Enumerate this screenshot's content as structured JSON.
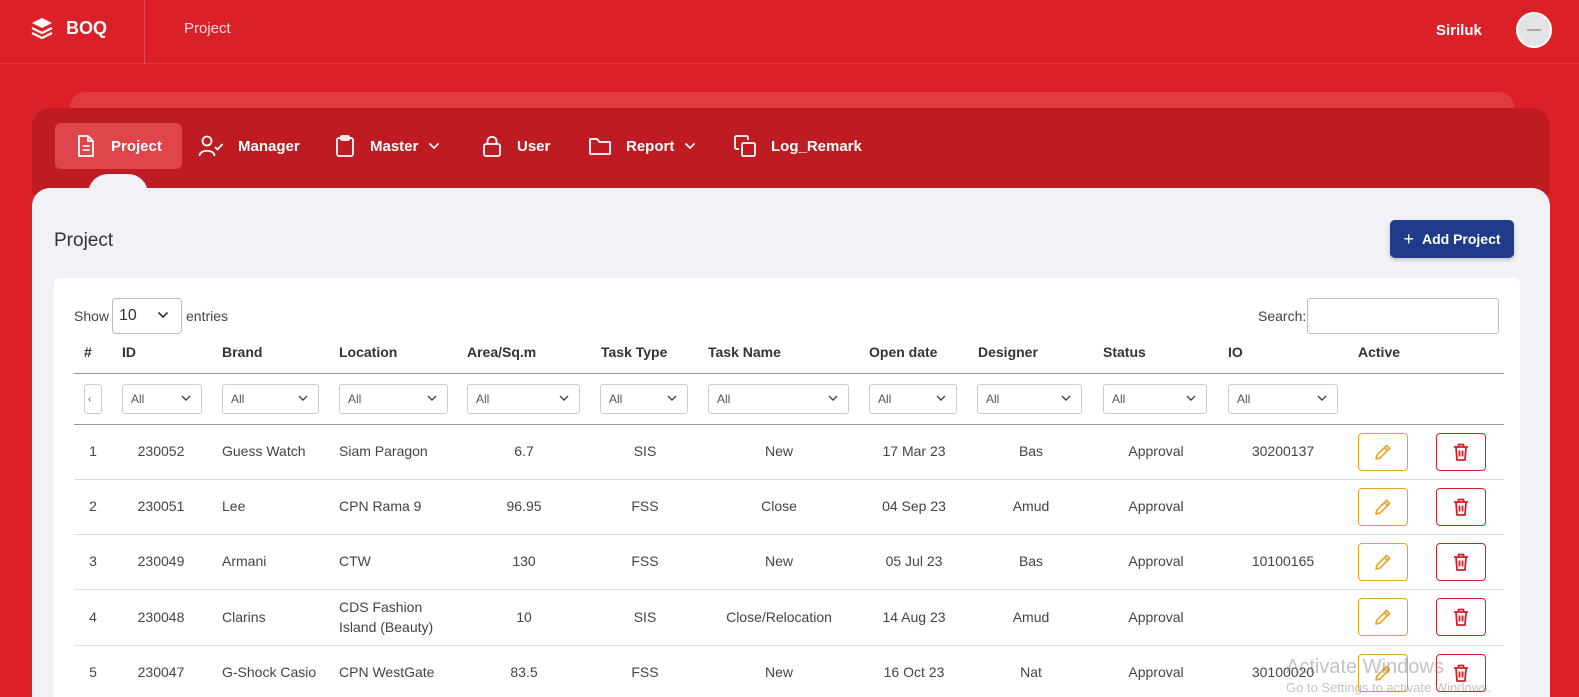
{
  "header": {
    "brand": "BOQ",
    "breadcrumb": "Project",
    "username": "Siriluk"
  },
  "nav": {
    "items": [
      {
        "label": "Project",
        "icon": "document-icon",
        "active": true
      },
      {
        "label": "Manager",
        "icon": "user-check-icon"
      },
      {
        "label": "Master",
        "icon": "clipboard-icon",
        "dropdown": true
      },
      {
        "label": "User",
        "icon": "lock-icon"
      },
      {
        "label": "Report",
        "icon": "folder-icon",
        "dropdown": true
      },
      {
        "label": "Log_Remark",
        "icon": "copy-icon"
      }
    ]
  },
  "page": {
    "title": "Project",
    "add_button": "Add Project"
  },
  "table_controls": {
    "show_label": "Show",
    "page_size": "10",
    "entries_label": "entries",
    "search_label": "Search:",
    "search_value": ""
  },
  "table": {
    "columns": [
      "#",
      "ID",
      "Brand",
      "Location",
      "Area/Sq.m",
      "Task Type",
      "Task Name",
      "Open date",
      "Designer",
      "Status",
      "IO",
      "Active"
    ],
    "filter_default": "All",
    "rows": [
      {
        "no": "1",
        "id": "230052",
        "brand": "Guess Watch",
        "location": "Siam Paragon",
        "location2": "",
        "area": "6.7",
        "task_type": "SIS",
        "task_name": "New",
        "open_date": "17 Mar 23",
        "designer": "Bas",
        "status": "Approval",
        "io": "30200137"
      },
      {
        "no": "2",
        "id": "230051",
        "brand": "Lee",
        "location": "CPN Rama 9",
        "location2": "",
        "area": "96.95",
        "task_type": "FSS",
        "task_name": "Close",
        "open_date": "04 Sep 23",
        "designer": "Amud",
        "status": "Approval",
        "io": ""
      },
      {
        "no": "3",
        "id": "230049",
        "brand": "Armani",
        "location": "CTW",
        "location2": "",
        "area": "130",
        "task_type": "FSS",
        "task_name": "New",
        "open_date": "05 Jul 23",
        "designer": "Bas",
        "status": "Approval",
        "io": "10100165"
      },
      {
        "no": "4",
        "id": "230048",
        "brand": "Clarins",
        "location": "CDS Fashion",
        "location2": "Island (Beauty)",
        "area": "10",
        "task_type": "SIS",
        "task_name": "Close/Relocation",
        "open_date": "14 Aug 23",
        "designer": "Amud",
        "status": "Approval",
        "io": ""
      },
      {
        "no": "5",
        "id": "230047",
        "brand": "G-Shock Casio",
        "location": "CPN WestGate",
        "location2": "",
        "area": "83.5",
        "task_type": "FSS",
        "task_name": "New",
        "open_date": "16 Oct 23",
        "designer": "Nat",
        "status": "Approval",
        "io": "30100020"
      }
    ]
  },
  "overlay": {
    "activate_title": "Activate Windows",
    "activate_sub": "Go to Settings to activate Windows."
  },
  "colors": {
    "header_red": "#dc2027",
    "nav_red": "#be1b22",
    "active_tab": "#e0454b",
    "primary_blue": "#1f3b8a",
    "edit_orange": "#f0a020",
    "delete_red": "#d32028"
  }
}
